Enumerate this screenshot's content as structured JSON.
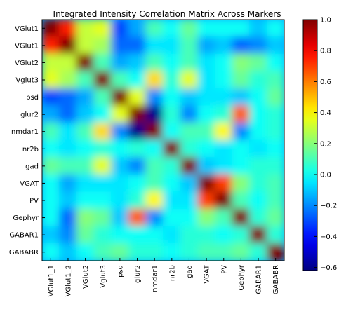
{
  "chart_data": {
    "type": "heatmap",
    "title": "Integrated Intensity Correlation Matrix Across Markers",
    "xlabel": "",
    "ylabel": "",
    "row_labels": [
      "VGlut1",
      "VGlut1",
      "VGlut2",
      "Vglut3",
      "psd",
      "glur2",
      "nmdar1",
      "nr2b",
      "gad",
      "VGAT",
      "PV",
      "Gephyr",
      "GABAR1",
      "GABABR"
    ],
    "col_labels": [
      "VGlut1_1",
      "VGlut1_2",
      "VGlut2",
      "Vglut3",
      "psd",
      "glur2",
      "nmdar1",
      "nr2b",
      "gad",
      "VGAT",
      "PV",
      "Gephyr",
      "GABAR1",
      "GABABR"
    ],
    "values": [
      [
        1.0,
        0.75,
        0.3,
        0.35,
        -0.3,
        -0.15,
        0.1,
        0.0,
        0.15,
        0.0,
        0.0,
        0.0,
        -0.1,
        0.0
      ],
      [
        0.75,
        1.0,
        0.3,
        0.25,
        -0.25,
        -0.25,
        -0.05,
        -0.05,
        0.1,
        -0.15,
        -0.1,
        -0.25,
        -0.2,
        -0.1
      ],
      [
        0.3,
        0.3,
        1.0,
        0.1,
        -0.15,
        -0.1,
        0.1,
        0.0,
        0.1,
        -0.05,
        0.0,
        0.2,
        0.15,
        0.0
      ],
      [
        0.35,
        0.25,
        0.1,
        1.0,
        0.1,
        0.0,
        0.45,
        0.05,
        0.35,
        -0.05,
        0.0,
        0.15,
        0.05,
        0.1
      ],
      [
        -0.3,
        -0.25,
        -0.15,
        0.1,
        1.0,
        0.35,
        -0.2,
        0.0,
        -0.1,
        -0.05,
        -0.05,
        -0.1,
        0.0,
        0.15
      ],
      [
        -0.15,
        -0.25,
        -0.1,
        0.0,
        0.35,
        1.0,
        -0.6,
        0.05,
        -0.2,
        0.0,
        0.05,
        0.65,
        0.0,
        0.05
      ],
      [
        0.1,
        -0.05,
        0.1,
        0.45,
        -0.2,
        -0.6,
        1.0,
        0.0,
        0.1,
        0.1,
        0.4,
        -0.2,
        0.0,
        0.05
      ],
      [
        0.0,
        -0.05,
        0.0,
        0.05,
        0.0,
        0.05,
        0.0,
        1.0,
        0.05,
        0.0,
        -0.05,
        0.0,
        -0.05,
        0.0
      ],
      [
        0.15,
        0.1,
        0.1,
        0.35,
        -0.1,
        -0.2,
        0.1,
        0.05,
        1.0,
        -0.1,
        -0.05,
        0.0,
        0.05,
        0.05
      ],
      [
        0.0,
        -0.15,
        -0.05,
        -0.05,
        -0.05,
        0.0,
        0.1,
        0.0,
        -0.1,
        1.0,
        0.7,
        0.2,
        0.05,
        0.1
      ],
      [
        0.0,
        -0.1,
        0.0,
        0.0,
        -0.05,
        0.05,
        0.4,
        -0.05,
        -0.05,
        0.7,
        1.0,
        0.1,
        0.0,
        0.1
      ],
      [
        0.0,
        -0.25,
        0.2,
        0.15,
        -0.1,
        0.65,
        -0.2,
        0.0,
        0.0,
        0.2,
        0.1,
        1.0,
        0.05,
        0.15
      ],
      [
        -0.1,
        -0.2,
        0.15,
        0.05,
        0.0,
        0.0,
        0.0,
        -0.05,
        0.05,
        0.05,
        0.0,
        0.05,
        1.0,
        0.05
      ],
      [
        0.0,
        -0.1,
        0.0,
        0.1,
        0.15,
        0.05,
        0.05,
        0.0,
        0.05,
        0.1,
        0.1,
        0.15,
        0.05,
        1.0
      ]
    ],
    "colormap": "jet",
    "vmin": -0.62,
    "vmax": 1.0,
    "interpolation": "smooth",
    "colorbar_ticks": [
      "1.0",
      "0.8",
      "0.6",
      "0.4",
      "0.2",
      "0.0",
      "−0.2",
      "−0.4",
      "−0.6"
    ],
    "colorbar_tick_values": [
      1.0,
      0.8,
      0.6,
      0.4,
      0.2,
      0.0,
      -0.2,
      -0.4,
      -0.6
    ]
  }
}
